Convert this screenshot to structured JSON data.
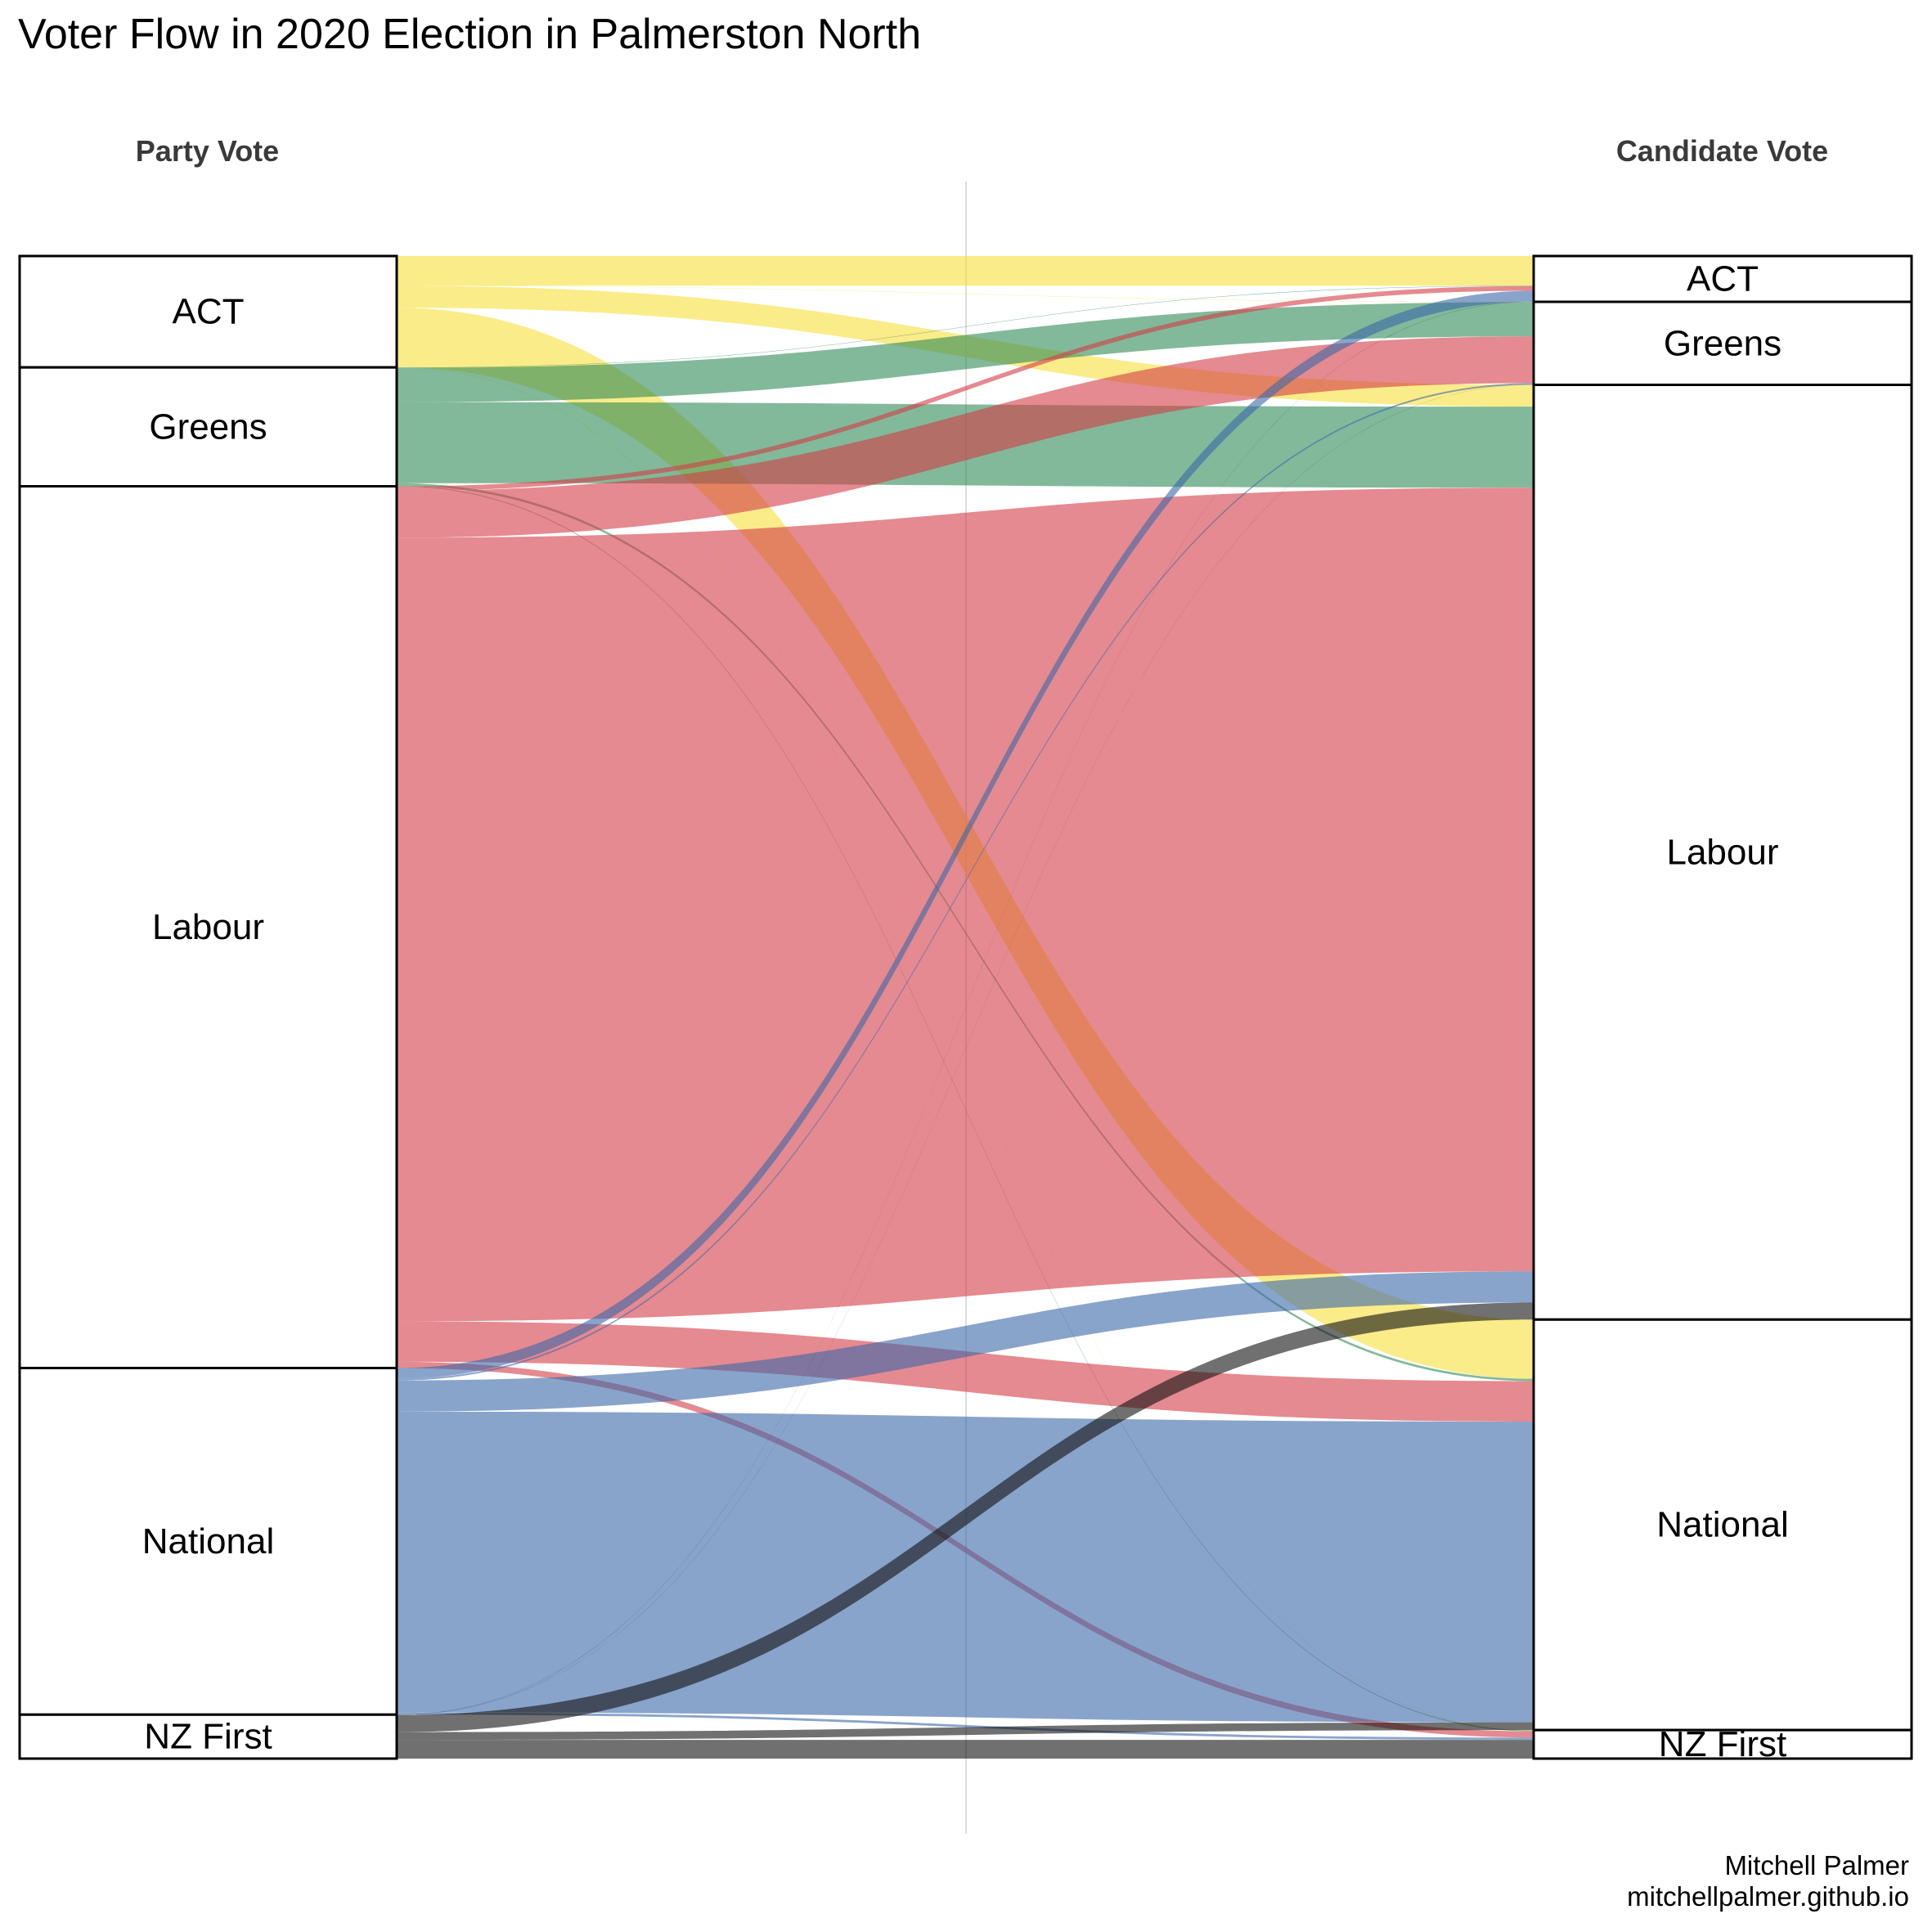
{
  "chart_data": {
    "type": "sankey",
    "title": "Voter Flow in 2020 Election in Palmerston North",
    "left_axis_label": "Party Vote",
    "right_axis_label": "Candidate Vote",
    "credit": [
      "Mitchell Palmer",
      "mitchellpalmer.github.io"
    ],
    "colors": {
      "ACT": "#f7e03a",
      "Greens": "#2e8b57",
      "Labour": "#d43c46",
      "National": "#3a67a8",
      "NZ First": "#111111"
    },
    "left_nodes": [
      "ACT",
      "Greens",
      "Labour",
      "National",
      "NZ First"
    ],
    "right_nodes": [
      "ACT",
      "Greens",
      "Labour",
      "National",
      "NZ First"
    ],
    "flows": [
      {
        "source": "ACT",
        "target": "ACT",
        "value": 1.9
      },
      {
        "source": "ACT",
        "target": "Greens",
        "value": 0.02
      },
      {
        "source": "ACT",
        "target": "Labour",
        "value": 1.4
      },
      {
        "source": "ACT",
        "target": "National",
        "value": 3.8
      },
      {
        "source": "ACT",
        "target": "NZ First",
        "value": 0.03
      },
      {
        "source": "Greens",
        "target": "ACT",
        "value": 0.03
      },
      {
        "source": "Greens",
        "target": "Greens",
        "value": 2.2
      },
      {
        "source": "Greens",
        "target": "Labour",
        "value": 5.2
      },
      {
        "source": "Greens",
        "target": "National",
        "value": 0.15
      },
      {
        "source": "Greens",
        "target": "NZ First",
        "value": 0.05
      },
      {
        "source": "Labour",
        "target": "ACT",
        "value": 0.3
      },
      {
        "source": "Labour",
        "target": "Greens",
        "value": 3.0
      },
      {
        "source": "Labour",
        "target": "Labour",
        "value": 50.3
      },
      {
        "source": "Labour",
        "target": "National",
        "value": 2.6
      },
      {
        "source": "Labour",
        "target": "NZ First",
        "value": 0.4
      },
      {
        "source": "National",
        "target": "ACT",
        "value": 0.7
      },
      {
        "source": "National",
        "target": "Greens",
        "value": 0.1
      },
      {
        "source": "National",
        "target": "Labour",
        "value": 2.0
      },
      {
        "source": "National",
        "target": "National",
        "value": 19.3
      },
      {
        "source": "National",
        "target": "NZ First",
        "value": 0.15
      },
      {
        "source": "NZ First",
        "target": "ACT",
        "value": 0.01
      },
      {
        "source": "NZ First",
        "target": "Greens",
        "value": 0.01
      },
      {
        "source": "NZ First",
        "target": "Labour",
        "value": 1.1
      },
      {
        "source": "NZ First",
        "target": "National",
        "value": 0.5
      },
      {
        "source": "NZ First",
        "target": "NZ First",
        "value": 1.2
      }
    ]
  }
}
